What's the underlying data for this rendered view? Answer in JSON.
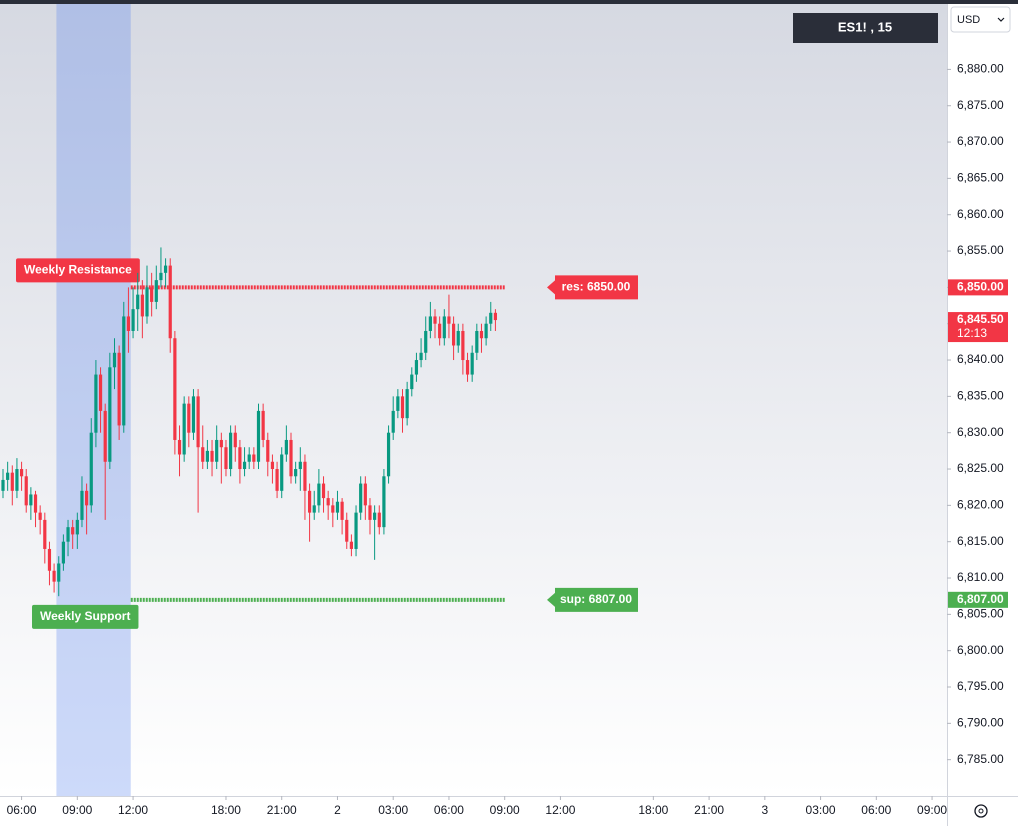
{
  "chart_data": {
    "type": "candlestick",
    "symbol": "ES1! , 15",
    "currency": "USD",
    "up_color": "#089981",
    "down_color": "#f23645",
    "open": [
      6822,
      6823.5,
      6824.5,
      6822,
      6825,
      6824,
      6820,
      6821.5,
      6819,
      6818,
      6814,
      6811,
      6809.5,
      6812,
      6815,
      6817,
      6816,
      6818,
      6822,
      6820,
      6830,
      6838,
      6833,
      6826,
      6839,
      6841,
      6831,
      6846,
      6844,
      6847,
      6849,
      6846,
      6850,
      6848,
      6851,
      6852,
      6853,
      6843,
      6829,
      6827,
      6834,
      6830,
      6835,
      6828,
      6826,
      6827.5,
      6826,
      6829,
      6828,
      6825,
      6830,
      6828,
      6825,
      6826,
      6827,
      6826,
      6833,
      6829,
      6826,
      6825,
      6822,
      6827,
      6829,
      6824,
      6825,
      6826,
      6822,
      6819,
      6820,
      6823,
      6821,
      6820,
      6819,
      6820.5,
      6818,
      6815,
      6814,
      6819,
      6823,
      6820,
      6818,
      6819,
      6817,
      6824,
      6830,
      6833,
      6835,
      6832,
      6836,
      6838,
      6840,
      6841,
      6844,
      6846,
      6845,
      6843,
      6846,
      6845,
      6842,
      6844,
      6840,
      6838,
      6841,
      6844,
      6843,
      6845,
      6846.5
    ],
    "high": [
      6825,
      6826,
      6825.5,
      6826.5,
      6826,
      6825,
      6822.5,
      6822,
      6820,
      6819,
      6815,
      6812,
      6813,
      6816,
      6818,
      6818,
      6819,
      6824,
      6823,
      6832,
      6840,
      6839,
      6834,
      6841,
      6843,
      6842,
      6848,
      6850,
      6850,
      6852,
      6851,
      6853,
      6852,
      6853,
      6855.5,
      6854,
      6854,
      6844,
      6831,
      6835,
      6835,
      6836,
      6836,
      6831,
      6829,
      6829,
      6831,
      6830,
      6829,
      6831,
      6831,
      6829,
      6828,
      6828,
      6828,
      6834,
      6834,
      6830,
      6827,
      6826,
      6828,
      6831,
      6830,
      6826,
      6828,
      6827,
      6823,
      6822,
      6825,
      6824,
      6822,
      6821,
      6822,
      6821,
      6819,
      6816,
      6820,
      6824,
      6824,
      6821,
      6820,
      6820,
      6825,
      6831,
      6835,
      6836,
      6836,
      6837,
      6839,
      6841,
      6843,
      6846,
      6848,
      6847,
      6846,
      6847,
      6849,
      6846,
      6845,
      6845,
      6841,
      6842,
      6845,
      6845,
      6846,
      6848,
      6847
    ],
    "low": [
      6821,
      6822,
      6820,
      6821,
      6822,
      6819,
      6818,
      6817,
      6816,
      6812,
      6809,
      6808,
      6807.5,
      6811,
      6813,
      6814,
      6814,
      6817,
      6816,
      6819,
      6828,
      6830,
      6818,
      6825,
      6836,
      6829,
      6830,
      6841,
      6843,
      6844,
      6843,
      6845,
      6846,
      6847,
      6850,
      6850,
      6841,
      6827,
      6824,
      6826,
      6828,
      6829,
      6819,
      6825,
      6825,
      6824,
      6825,
      6823,
      6824,
      6824,
      6826,
      6823,
      6824,
      6825,
      6825,
      6825,
      6828,
      6824,
      6823,
      6821,
      6821,
      6826,
      6823,
      6823,
      6822,
      6818,
      6815,
      6818,
      6819,
      6819,
      6818,
      6817,
      6818,
      6816,
      6814,
      6813,
      6813,
      6818,
      6818,
      6816,
      6812.5,
      6816,
      6816,
      6823,
      6829,
      6832,
      6830,
      6831,
      6835,
      6837,
      6839,
      6840,
      6843,
      6843,
      6842,
      6842,
      6843,
      6840,
      6841,
      6838,
      6837,
      6837,
      6840,
      6841,
      6842,
      6844,
      6844
    ],
    "close": [
      6823.5,
      6824.5,
      6822,
      6825,
      6824,
      6820,
      6821.5,
      6819,
      6818,
      6814,
      6811,
      6809.5,
      6812,
      6815,
      6817,
      6816,
      6818,
      6822,
      6820,
      6830,
      6838,
      6833,
      6826,
      6839,
      6841,
      6831,
      6846,
      6844,
      6847,
      6849,
      6846,
      6850,
      6848,
      6851,
      6852,
      6853,
      6843,
      6829,
      6827,
      6834,
      6830,
      6835,
      6828,
      6826,
      6827.5,
      6826,
      6829,
      6828,
      6825,
      6830,
      6828,
      6825,
      6826,
      6827,
      6826,
      6833,
      6829,
      6826,
      6825,
      6822,
      6827,
      6829,
      6824,
      6825,
      6826,
      6822,
      6819,
      6820,
      6823,
      6821,
      6820,
      6819,
      6820.5,
      6818,
      6815,
      6814,
      6819,
      6823,
      6820,
      6818,
      6819,
      6817,
      6824,
      6830,
      6833,
      6835,
      6832,
      6836,
      6838,
      6840,
      6841,
      6844,
      6846,
      6845,
      6843,
      6846,
      6845,
      6842,
      6844,
      6840,
      6838,
      6841,
      6844,
      6843,
      6845,
      6846.5,
      6845.5
    ],
    "xlim": [
      0,
      203
    ],
    "xticks": [
      {
        "value": 4,
        "label": "06:00"
      },
      {
        "value": 16,
        "label": "09:00"
      },
      {
        "value": 28,
        "label": "12:00"
      },
      {
        "value": 48,
        "label": "18:00"
      },
      {
        "value": 60,
        "label": "21:00"
      },
      {
        "value": 72,
        "label": "2"
      },
      {
        "value": 84,
        "label": "03:00"
      },
      {
        "value": 96,
        "label": "06:00"
      },
      {
        "value": 108,
        "label": "09:00"
      },
      {
        "value": 120,
        "label": "12:00"
      },
      {
        "value": 140,
        "label": "18:00"
      },
      {
        "value": 152,
        "label": "21:00"
      },
      {
        "value": 164,
        "label": "3"
      },
      {
        "value": 176,
        "label": "03:00"
      },
      {
        "value": 188,
        "label": "06:00"
      },
      {
        "value": 200,
        "label": "09:00"
      }
    ],
    "ylim": [
      6780,
      6889
    ],
    "yticks": [
      {
        "value": 6785,
        "label": "6,785.00"
      },
      {
        "value": 6790,
        "label": "6,790.00"
      },
      {
        "value": 6795,
        "label": "6,795.00"
      },
      {
        "value": 6800,
        "label": "6,800.00"
      },
      {
        "value": 6805,
        "label": "6,805.00"
      },
      {
        "value": 6810,
        "label": "6,810.00"
      },
      {
        "value": 6815,
        "label": "6,815.00"
      },
      {
        "value": 6820,
        "label": "6,820.00"
      },
      {
        "value": 6825,
        "label": "6,825.00"
      },
      {
        "value": 6830,
        "label": "6,830.00"
      },
      {
        "value": 6835,
        "label": "6,835.00"
      },
      {
        "value": 6840,
        "label": "6,840.00"
      },
      {
        "value": 6845,
        "label": "6,845.00"
      },
      {
        "value": 6850,
        "label": "6,850.00"
      },
      {
        "value": 6855,
        "label": "6,855.00"
      },
      {
        "value": 6860,
        "label": "6,860.00"
      },
      {
        "value": 6865,
        "label": "6,865.00"
      },
      {
        "value": 6870,
        "label": "6,870.00"
      },
      {
        "value": 6875,
        "label": "6,875.00"
      },
      {
        "value": 6880,
        "label": "6,880.00"
      }
    ],
    "highlight_range": [
      11.5,
      27.5
    ],
    "levels": [
      {
        "name": "Weekly Resistance",
        "value": 6850,
        "label": "res: 6850.00",
        "axis_label": "6,850.00",
        "color": "#f23645",
        "start": 27.5,
        "end": 108
      },
      {
        "name": "Weekly Support",
        "value": 6807,
        "label": "sup: 6807.00",
        "axis_label": "6,807.00",
        "color": "#4caf50",
        "start": 27.5,
        "end": 108
      }
    ],
    "last_price": {
      "value": 6845.5,
      "label": "6,845.50",
      "countdown": "12:13",
      "color": "#f23645"
    }
  }
}
